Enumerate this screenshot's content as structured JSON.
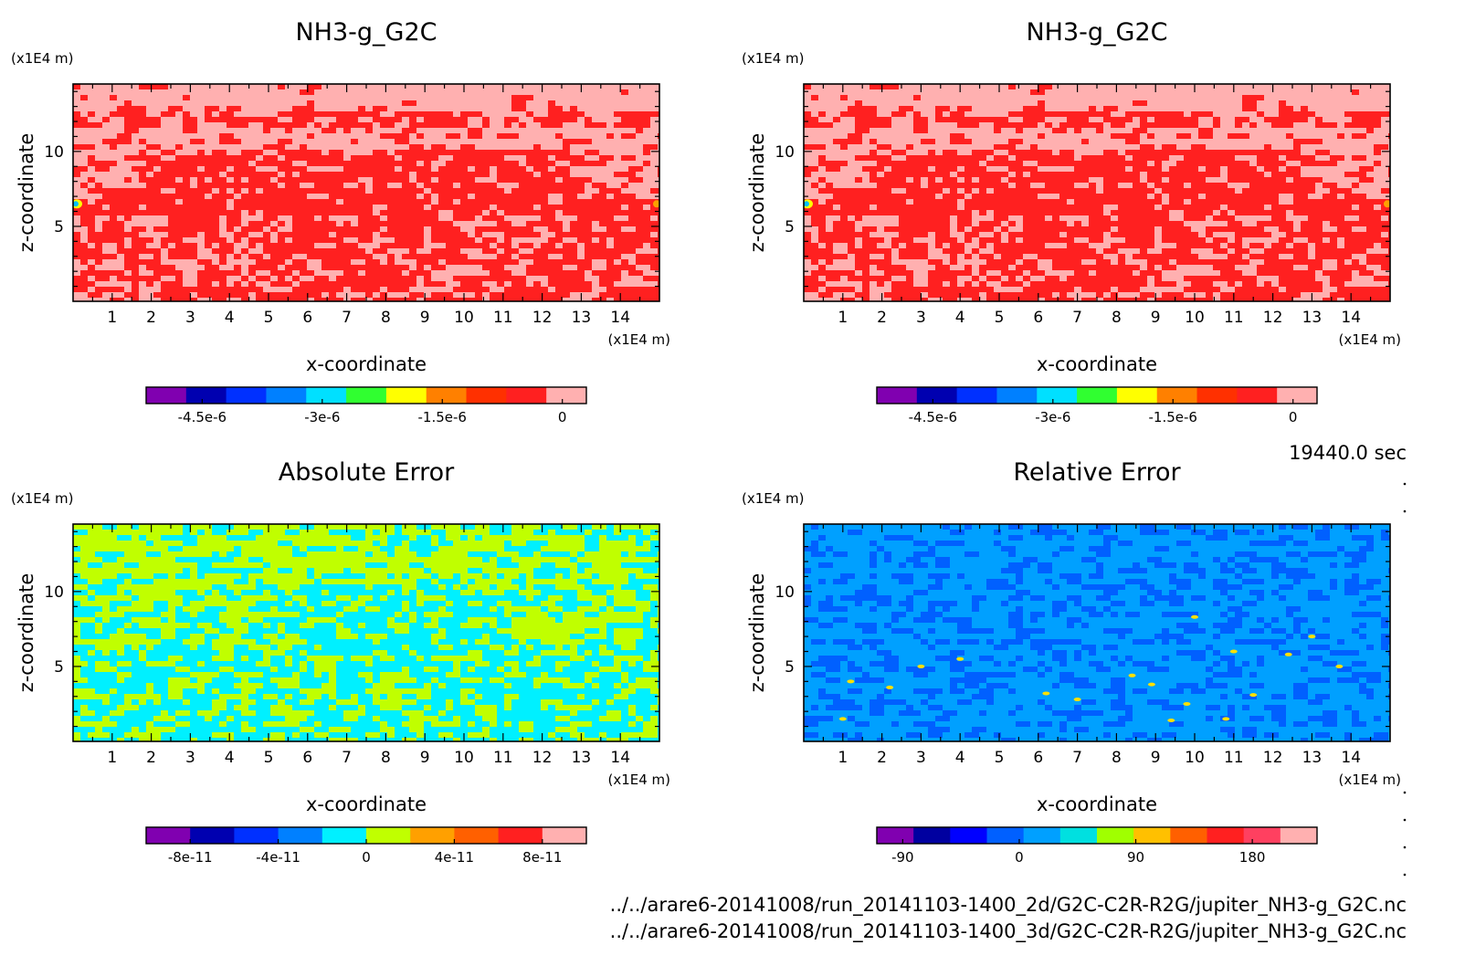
{
  "figure": {
    "time_label": "19440.0 sec",
    "files": [
      "../../arare6-20141008/run_20141103-1400_2d/G2C-C2R-R2G/jupiter_NH3-g_G2C.nc",
      "../../arare6-20141008/run_20141103-1400_3d/G2C-C2R-R2G/jupiter_NH3-g_G2C.nc"
    ]
  },
  "chart_data": [
    {
      "type": "heatmap",
      "title": "NH3-g_G2C",
      "xlabel": "x-coordinate",
      "ylabel": "z-coordinate",
      "x_unit": "(x1E4 m)",
      "y_unit": "(x1E4 m)",
      "xlim": [
        0,
        15
      ],
      "ylim": [
        0,
        14.5
      ],
      "x_ticks": [
        "1",
        "2",
        "3",
        "4",
        "5",
        "6",
        "7",
        "8",
        "9",
        "10",
        "11",
        "12",
        "13",
        "14"
      ],
      "y_ticks": [
        "5",
        "10"
      ],
      "field": "2d run",
      "colorbar": {
        "colors": [
          "#8000b0",
          "#0000b0",
          "#0030ff",
          "#0080ff",
          "#00e0ff",
          "#30ff30",
          "#ffff00",
          "#ff8000",
          "#ff3000",
          "#ff2020",
          "#ffb0b0"
        ],
        "tick_labels": [
          "-4.5e-6",
          "-3e-6",
          "-1.5e-6",
          "0"
        ],
        "tick_values": [
          -4.5e-06,
          -3e-06,
          -1.5e-06,
          0
        ],
        "range": [
          -5.2e-06,
          3e-07
        ]
      },
      "dominant_levels": [
        "#ff2020",
        "#ffb0b0"
      ]
    },
    {
      "type": "heatmap",
      "title": "NH3-g_G2C",
      "xlabel": "x-coordinate",
      "ylabel": "z-coordinate",
      "x_unit": "(x1E4 m)",
      "y_unit": "(x1E4 m)",
      "xlim": [
        0,
        15
      ],
      "ylim": [
        0,
        14.5
      ],
      "x_ticks": [
        "1",
        "2",
        "3",
        "4",
        "5",
        "6",
        "7",
        "8",
        "9",
        "10",
        "11",
        "12",
        "13",
        "14"
      ],
      "y_ticks": [
        "5",
        "10"
      ],
      "field": "3d run",
      "colorbar": {
        "colors": [
          "#8000b0",
          "#0000b0",
          "#0030ff",
          "#0080ff",
          "#00e0ff",
          "#30ff30",
          "#ffff00",
          "#ff8000",
          "#ff3000",
          "#ff2020",
          "#ffb0b0"
        ],
        "tick_labels": [
          "-4.5e-6",
          "-3e-6",
          "-1.5e-6",
          "0"
        ],
        "tick_values": [
          -4.5e-06,
          -3e-06,
          -1.5e-06,
          0
        ],
        "range": [
          -5.2e-06,
          3e-07
        ]
      },
      "dominant_levels": [
        "#ff2020",
        "#ffb0b0"
      ]
    },
    {
      "type": "heatmap",
      "title": "Absolute Error",
      "xlabel": "x-coordinate",
      "ylabel": "z-coordinate",
      "x_unit": "(x1E4 m)",
      "y_unit": "(x1E4 m)",
      "xlim": [
        0,
        15
      ],
      "ylim": [
        0,
        14.5
      ],
      "x_ticks": [
        "1",
        "2",
        "3",
        "4",
        "5",
        "6",
        "7",
        "8",
        "9",
        "10",
        "11",
        "12",
        "13",
        "14"
      ],
      "y_ticks": [
        "5",
        "10"
      ],
      "field": "absolute error",
      "colorbar": {
        "colors": [
          "#8000b0",
          "#0000b0",
          "#0030ff",
          "#0080ff",
          "#00f0ff",
          "#c0ff00",
          "#ffa000",
          "#ff6000",
          "#ff2020",
          "#ffb0b0"
        ],
        "tick_labels": [
          "-8e-11",
          "-4e-11",
          "0",
          "4e-11",
          "8e-11"
        ],
        "tick_values": [
          -8e-11,
          -4e-11,
          0,
          4e-11,
          8e-11
        ],
        "range": [
          -1e-10,
          1e-10
        ]
      },
      "dominant_levels": [
        "#00f0ff",
        "#c0ff00"
      ]
    },
    {
      "type": "heatmap",
      "title": "Relative Error",
      "xlabel": "x-coordinate",
      "ylabel": "z-coordinate",
      "x_unit": "(x1E4 m)",
      "y_unit": "(x1E4 m)",
      "xlim": [
        0,
        15
      ],
      "ylim": [
        0,
        14.5
      ],
      "x_ticks": [
        "1",
        "2",
        "3",
        "4",
        "5",
        "6",
        "7",
        "8",
        "9",
        "10",
        "11",
        "12",
        "13",
        "14"
      ],
      "y_ticks": [
        "5",
        "10"
      ],
      "field": "relative error",
      "colorbar": {
        "colors": [
          "#8000b0",
          "#0000a0",
          "#0000ff",
          "#0060ff",
          "#00a0ff",
          "#00e0e0",
          "#a0ff00",
          "#ffc000",
          "#ff6000",
          "#ff2020",
          "#ff4060",
          "#ffb0b0"
        ],
        "tick_labels": [
          "-90",
          "0",
          "90",
          "180"
        ],
        "tick_values": [
          -90,
          0,
          90,
          180
        ],
        "range": [
          -110,
          230
        ]
      },
      "dominant_levels": [
        "#0060ff",
        "#00a0ff"
      ]
    }
  ]
}
